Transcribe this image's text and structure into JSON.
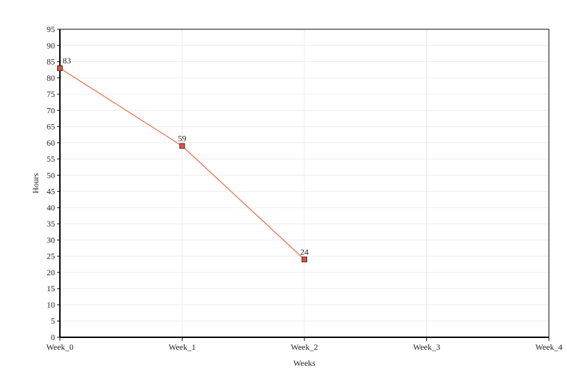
{
  "chart_data": {
    "type": "line",
    "x_label": "Weeks",
    "y_label": "Hours",
    "categories": [
      "Week_0",
      "Week_1",
      "Week_2",
      "Week_3",
      "Week_4"
    ],
    "values": [
      83,
      59,
      24,
      null,
      null
    ],
    "color": "#f07050",
    "marker_color": "#e8503a",
    "ylim": [
      0,
      95
    ],
    "yticks": [
      0,
      5,
      10,
      15,
      20,
      25,
      30,
      35,
      40,
      45,
      50,
      55,
      60,
      65,
      70,
      75,
      80,
      85,
      90,
      95
    ],
    "grid": true,
    "data_labels": true
  }
}
